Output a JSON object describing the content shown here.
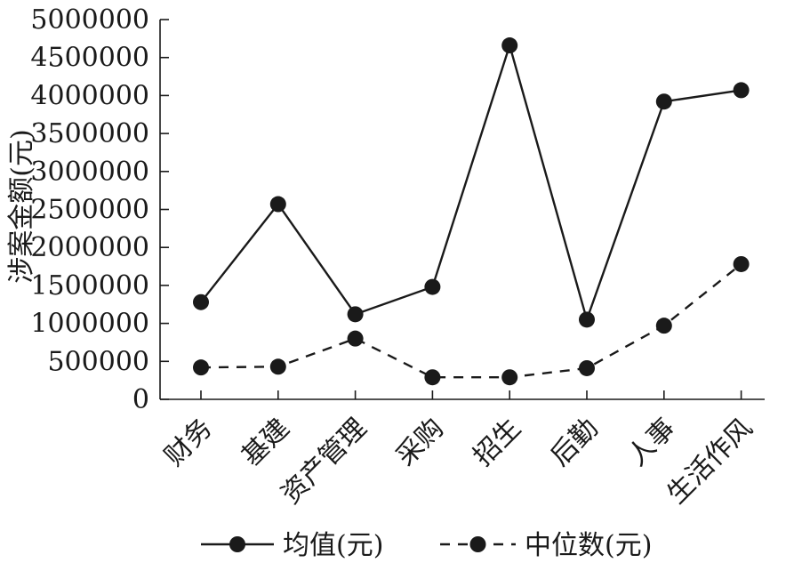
{
  "chart_data": {
    "type": "line",
    "ylabel": "涉案金额(元)",
    "xlabel": "",
    "ylim": [
      0,
      5000000
    ],
    "yticks": [
      "0",
      "500000",
      "1000000",
      "1500000",
      "2000000",
      "2500000",
      "3000000",
      "3500000",
      "4000000",
      "4500000",
      "5000000"
    ],
    "categories": [
      "财务",
      "基建",
      "资产管理",
      "采购",
      "招生",
      "后勤",
      "人事",
      "生活作风"
    ],
    "series": [
      {
        "name": "均值(元)",
        "style": "solid",
        "values": [
          1280000,
          2570000,
          1120000,
          1480000,
          4660000,
          1050000,
          3920000,
          4070000
        ]
      },
      {
        "name": "中位数(元)",
        "style": "dashed",
        "values": [
          420000,
          430000,
          800000,
          290000,
          290000,
          410000,
          970000,
          1780000
        ]
      }
    ],
    "legend": "bottom",
    "grid": false,
    "colors": {
      "line": "#1a1a1a",
      "marker": "#1a1a1a"
    }
  }
}
